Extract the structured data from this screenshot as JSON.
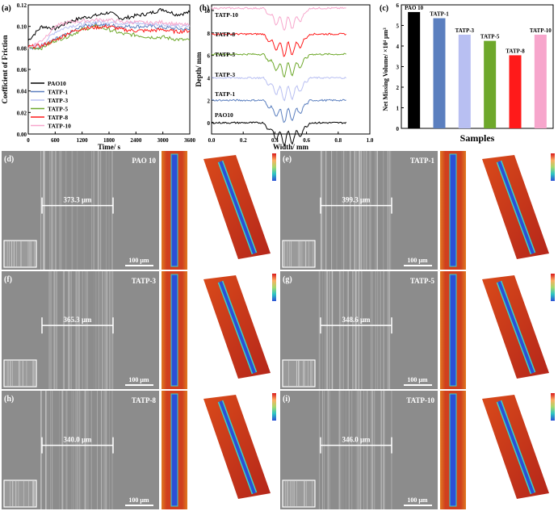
{
  "colors": {
    "PAO10": "#000000",
    "TATP-1": "#5b7fbf",
    "TATP-3": "#b8bff2",
    "TATP-5": "#6ea82b",
    "TATP-8": "#ff1a1a",
    "TATP-10": "#f7a6cc",
    "sem_bg": "#8a8a8a",
    "heat_red": "#c8321e",
    "heat_blue": "#2c4fd6"
  },
  "panel_a": {
    "label": "(a)",
    "ylabel": "Coefficient of Friction",
    "xlabel": "Time/ s",
    "yticks": [
      "0.00",
      "0.02",
      "0.04",
      "0.06",
      "0.08",
      "0.10",
      "0.12"
    ],
    "xticks": [
      "0",
      "600",
      "1200",
      "1800",
      "2400",
      "3000",
      "3600"
    ],
    "legend": [
      "PAO10",
      "TATP-1",
      "TATP-3",
      "TATP-5",
      "TATP-8",
      "TATP-10"
    ]
  },
  "panel_b": {
    "label": "(b)",
    "ylabel": "Depth/ mm",
    "xlabel": "Width/ mm",
    "yticks": [
      "0",
      "2",
      "4",
      "6",
      "8",
      "10"
    ],
    "xticks": [
      "0.0",
      "0.2",
      "0.4",
      "0.6",
      "0.8",
      "1.0"
    ],
    "curve_labels": [
      "TATP-10",
      "TATP-8",
      "TATP-5",
      "TATP-3",
      "TATP-1",
      "PAO10"
    ]
  },
  "panel_c": {
    "label": "(c)",
    "ylabel": "Net Missing Volume/ ×10⁴ μm³",
    "xlabel": "Samples",
    "yticks": [
      "0",
      "1",
      "2",
      "3",
      "4",
      "5",
      "6"
    ],
    "bar_labels": [
      "PAO 10",
      "TATP-1",
      "TATP-3",
      "TATP-5",
      "TATP-8",
      "TATP-10"
    ]
  },
  "chart_data": [
    {
      "type": "line",
      "title": "",
      "xlabel": "Time/ s",
      "ylabel": "Coefficient of Friction",
      "xlim": [
        0,
        3600
      ],
      "ylim": [
        0,
        0.12
      ],
      "legend_position": "bottom-left",
      "x": [
        0,
        300,
        600,
        900,
        1200,
        1500,
        1800,
        2100,
        2400,
        2700,
        3000,
        3300,
        3600
      ],
      "series": [
        {
          "name": "PAO10",
          "values": [
            0.087,
            0.1,
            0.098,
            0.104,
            0.108,
            0.11,
            0.113,
            0.107,
            0.11,
            0.112,
            0.116,
            0.111,
            0.113
          ]
        },
        {
          "name": "TATP-1",
          "values": [
            0.08,
            0.081,
            0.088,
            0.093,
            0.1,
            0.102,
            0.101,
            0.1,
            0.1,
            0.1,
            0.099,
            0.098,
            0.097
          ]
        },
        {
          "name": "TATP-3",
          "values": [
            0.08,
            0.083,
            0.095,
            0.1,
            0.102,
            0.104,
            0.104,
            0.103,
            0.103,
            0.102,
            0.102,
            0.1,
            0.1
          ]
        },
        {
          "name": "TATP-5",
          "values": [
            0.08,
            0.08,
            0.087,
            0.091,
            0.097,
            0.1,
            0.097,
            0.093,
            0.092,
            0.09,
            0.09,
            0.088,
            0.087
          ]
        },
        {
          "name": "TATP-8",
          "values": [
            0.081,
            0.082,
            0.087,
            0.094,
            0.098,
            0.099,
            0.1,
            0.097,
            0.096,
            0.096,
            0.097,
            0.095,
            0.096
          ]
        },
        {
          "name": "TATP-10",
          "values": [
            0.08,
            0.087,
            0.1,
            0.104,
            0.105,
            0.106,
            0.106,
            0.104,
            0.104,
            0.103,
            0.104,
            0.102,
            0.101
          ]
        }
      ]
    },
    {
      "type": "line",
      "title": "",
      "xlabel": "Width/ mm",
      "ylabel": "Depth/ mm",
      "xlim": [
        0,
        1.0
      ],
      "ylim": [
        -1,
        10.5
      ],
      "series": [
        {
          "name": "TATP-10",
          "offset": 10.2
        },
        {
          "name": "TATP-8",
          "offset": 7.9
        },
        {
          "name": "TATP-5",
          "offset": 6.1
        },
        {
          "name": "TATP-3",
          "offset": 4.0
        },
        {
          "name": "TATP-1",
          "offset": 2.0
        },
        {
          "name": "PAO10",
          "offset": 0.0
        }
      ]
    },
    {
      "type": "bar",
      "title": "",
      "xlabel": "Samples",
      "ylabel": "Net Missing Volume/ ×10⁴ μm³",
      "ylim": [
        0,
        6
      ],
      "categories": [
        "PAO 10",
        "TATP-1",
        "TATP-3",
        "TATP-5",
        "TATP-8",
        "TATP-10"
      ],
      "values": [
        5.65,
        5.35,
        4.55,
        4.25,
        3.55,
        4.55
      ]
    }
  ],
  "micro_panels": [
    {
      "label": "(d)",
      "sample": "PAO 10",
      "width_text": "373.3 μm",
      "scale": "100 μm"
    },
    {
      "label": "(e)",
      "sample": "TATP-1",
      "width_text": "399.3 μm",
      "scale": "100 μm"
    },
    {
      "label": "(f)",
      "sample": "TATP-3",
      "width_text": "365.3 μm",
      "scale": "100 μm"
    },
    {
      "label": "(g)",
      "sample": "TATP-5",
      "width_text": "348.6 μm",
      "scale": "100 μm"
    },
    {
      "label": "(h)",
      "sample": "TATP-8",
      "width_text": "340.0 μm",
      "scale": "100 μm"
    },
    {
      "label": "(i)",
      "sample": "TATP-10",
      "width_text": "346.0 μm",
      "scale": "100 μm"
    }
  ]
}
